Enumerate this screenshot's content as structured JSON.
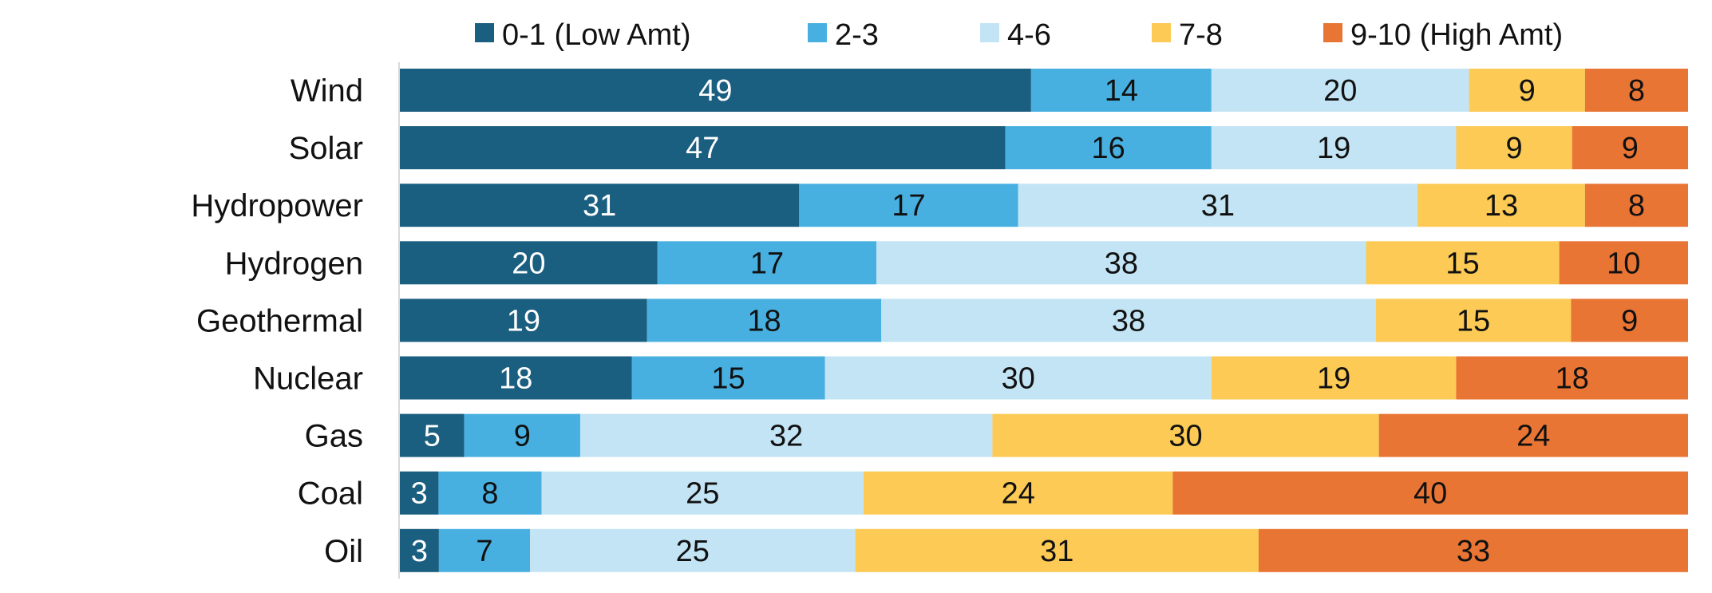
{
  "chart_data": {
    "type": "bar",
    "orientation": "horizontal",
    "stacked": true,
    "title": "",
    "xlabel": "",
    "ylabel": "",
    "xlim": [
      0,
      100
    ],
    "grid": false,
    "legend_position": "top",
    "categories": [
      "Wind",
      "Solar",
      "Hydropower",
      "Hydrogen",
      "Geothermal",
      "Nuclear",
      "Gas",
      "Coal",
      "Oil"
    ],
    "series": [
      {
        "name": "0-1 (Low Amt)",
        "color": "#1A5E80",
        "label_color": "#ffffff",
        "values": [
          49,
          47,
          31,
          20,
          19,
          18,
          5,
          3,
          3
        ]
      },
      {
        "name": "2-3",
        "color": "#48B0E0",
        "label_color": "#111111",
        "values": [
          14,
          16,
          17,
          17,
          18,
          15,
          9,
          8,
          7
        ]
      },
      {
        "name": "4-6",
        "color": "#C3E4F4",
        "label_color": "#111111",
        "values": [
          20,
          19,
          31,
          38,
          38,
          30,
          32,
          25,
          25
        ]
      },
      {
        "name": "7-8",
        "color": "#FCCA55",
        "label_color": "#111111",
        "values": [
          9,
          9,
          13,
          15,
          15,
          19,
          30,
          24,
          31
        ]
      },
      {
        "name": "9-10 (High Amt)",
        "color": "#E97535",
        "label_color": "#111111",
        "values": [
          8,
          9,
          8,
          10,
          9,
          18,
          24,
          40,
          33
        ]
      }
    ]
  }
}
